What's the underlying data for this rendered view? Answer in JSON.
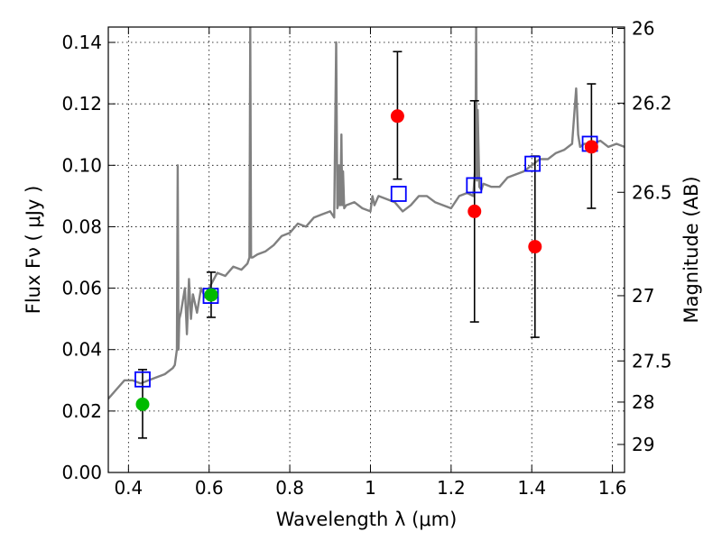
{
  "chart_data": {
    "type": "scatter",
    "xlabel": "Wavelength  λ (μm)",
    "ylabel": "Flux  Fν  ( μJy )",
    "ylabel_right": "Magnitude (AB)",
    "xlim": [
      0.35,
      1.63
    ],
    "ylim": [
      0.0,
      0.145
    ],
    "xticks": [
      {
        "v": 0.4,
        "label": "0.4"
      },
      {
        "v": 0.6,
        "label": "0.6"
      },
      {
        "v": 0.8,
        "label": "0.8"
      },
      {
        "v": 1.0,
        "label": "1"
      },
      {
        "v": 1.2,
        "label": "1.2"
      },
      {
        "v": 1.4,
        "label": "1.4"
      },
      {
        "v": 1.6,
        "label": "1.6"
      }
    ],
    "yticks": [
      {
        "v": 0.0,
        "label": "0.00"
      },
      {
        "v": 0.02,
        "label": "0.02"
      },
      {
        "v": 0.04,
        "label": "0.04"
      },
      {
        "v": 0.06,
        "label": "0.06"
      },
      {
        "v": 0.08,
        "label": "0.08"
      },
      {
        "v": 0.1,
        "label": "0.10"
      },
      {
        "v": 0.12,
        "label": "0.12"
      },
      {
        "v": 0.14,
        "label": "0.14"
      }
    ],
    "magnitude_ticks": [
      {
        "mag": 26,
        "label": "26"
      },
      {
        "mag": 26.2,
        "label": "26.2"
      },
      {
        "mag": 26.5,
        "label": "26.5"
      },
      {
        "mag": 27,
        "label": "27"
      },
      {
        "mag": 27.5,
        "label": "27.5"
      },
      {
        "mag": 28,
        "label": "28"
      },
      {
        "mag": 29,
        "label": "29"
      }
    ],
    "grid": true,
    "colors": {
      "spectrum": "#808080",
      "model": "#0000ff",
      "observed_red": "#ff0000",
      "observed_green": "#00bb00",
      "errorbar": "#000000"
    },
    "spectrum": {
      "x": [
        0.35,
        0.37,
        0.39,
        0.41,
        0.43,
        0.45,
        0.47,
        0.49,
        0.51,
        0.515,
        0.52,
        0.522,
        0.524,
        0.526,
        0.53,
        0.54,
        0.545,
        0.55,
        0.555,
        0.56,
        0.57,
        0.58,
        0.59,
        0.6,
        0.62,
        0.64,
        0.66,
        0.68,
        0.695,
        0.7,
        0.702,
        0.704,
        0.708,
        0.72,
        0.74,
        0.76,
        0.78,
        0.8,
        0.82,
        0.84,
        0.86,
        0.88,
        0.9,
        0.91,
        0.915,
        0.918,
        0.92,
        0.922,
        0.925,
        0.928,
        0.93,
        0.932,
        0.935,
        0.94,
        0.96,
        0.98,
        1.0,
        1.005,
        1.01,
        1.02,
        1.04,
        1.06,
        1.08,
        1.1,
        1.12,
        1.14,
        1.16,
        1.18,
        1.2,
        1.22,
        1.24,
        1.255,
        1.26,
        1.262,
        1.264,
        1.266,
        1.27,
        1.275,
        1.28,
        1.3,
        1.32,
        1.34,
        1.36,
        1.38,
        1.4,
        1.42,
        1.44,
        1.46,
        1.48,
        1.5,
        1.51,
        1.515,
        1.52,
        1.53,
        1.55,
        1.57,
        1.59,
        1.61,
        1.63
      ],
      "y": [
        0.024,
        0.027,
        0.03,
        0.03,
        0.029,
        0.03,
        0.031,
        0.032,
        0.034,
        0.035,
        0.04,
        0.1,
        0.04,
        0.05,
        0.052,
        0.06,
        0.045,
        0.063,
        0.05,
        0.058,
        0.052,
        0.06,
        0.057,
        0.06,
        0.065,
        0.064,
        0.067,
        0.066,
        0.068,
        0.07,
        0.145,
        0.07,
        0.07,
        0.071,
        0.072,
        0.074,
        0.077,
        0.078,
        0.081,
        0.08,
        0.083,
        0.084,
        0.085,
        0.083,
        0.14,
        0.086,
        0.087,
        0.1,
        0.087,
        0.11,
        0.087,
        0.098,
        0.086,
        0.087,
        0.088,
        0.086,
        0.085,
        0.09,
        0.087,
        0.09,
        0.089,
        0.088,
        0.085,
        0.087,
        0.09,
        0.09,
        0.088,
        0.087,
        0.086,
        0.09,
        0.091,
        0.09,
        0.1,
        0.145,
        0.095,
        0.118,
        0.093,
        0.092,
        0.094,
        0.093,
        0.093,
        0.096,
        0.097,
        0.098,
        0.1,
        0.102,
        0.102,
        0.104,
        0.105,
        0.107,
        0.125,
        0.11,
        0.106,
        0.107,
        0.107,
        0.108,
        0.106,
        0.107,
        0.106
      ]
    },
    "model_points": {
      "x": [
        0.435,
        0.604,
        1.07,
        1.257,
        1.402,
        1.544
      ],
      "y": [
        0.0303,
        0.0575,
        0.0907,
        0.0935,
        0.1005,
        0.107
      ]
    },
    "observed_points": [
      {
        "x": 0.435,
        "y": 0.0222,
        "err_low": 0.0112,
        "err_high": 0.0335,
        "color": "green"
      },
      {
        "x": 0.605,
        "y": 0.0578,
        "err_low": 0.0505,
        "err_high": 0.0652,
        "color": "green"
      },
      {
        "x": 1.067,
        "y": 0.116,
        "err_low": 0.0955,
        "err_high": 0.137,
        "color": "red"
      },
      {
        "x": 1.258,
        "y": 0.085,
        "err_low": 0.049,
        "err_high": 0.121,
        "color": "red"
      },
      {
        "x": 1.408,
        "y": 0.0735,
        "err_low": 0.044,
        "err_high": 0.103,
        "color": "red"
      },
      {
        "x": 1.548,
        "y": 0.106,
        "err_low": 0.086,
        "err_high": 0.1265,
        "color": "red"
      }
    ]
  }
}
